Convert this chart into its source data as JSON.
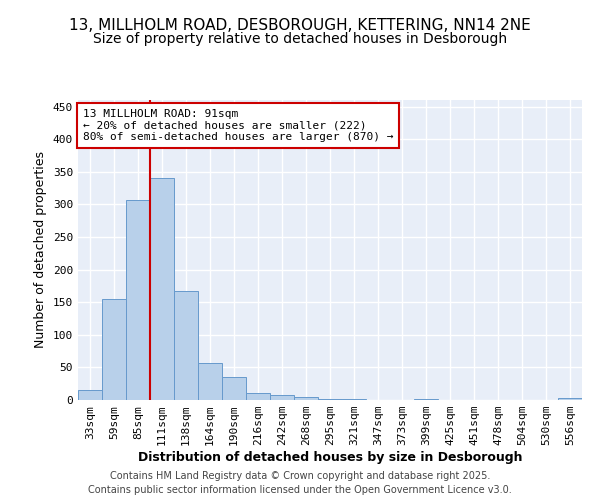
{
  "title_line1": "13, MILLHOLM ROAD, DESBOROUGH, KETTERING, NN14 2NE",
  "title_line2": "Size of property relative to detached houses in Desborough",
  "xlabel": "Distribution of detached houses by size in Desborough",
  "ylabel": "Number of detached properties",
  "categories": [
    "33sqm",
    "59sqm",
    "85sqm",
    "111sqm",
    "138sqm",
    "164sqm",
    "190sqm",
    "216sqm",
    "242sqm",
    "268sqm",
    "295sqm",
    "321sqm",
    "347sqm",
    "373sqm",
    "399sqm",
    "425sqm",
    "451sqm",
    "478sqm",
    "504sqm",
    "530sqm",
    "556sqm"
  ],
  "values": [
    15,
    155,
    307,
    340,
    167,
    56,
    35,
    10,
    8,
    4,
    2,
    1,
    0,
    0,
    2,
    0,
    0,
    0,
    0,
    0,
    3
  ],
  "bar_color": "#b8d0ea",
  "bar_edge_color": "#6699cc",
  "bg_color": "#e8eef8",
  "grid_color": "#ffffff",
  "vline_x": 2.5,
  "vline_color": "#cc0000",
  "annotation_text": "13 MILLHOLM ROAD: 91sqm\n← 20% of detached houses are smaller (222)\n80% of semi-detached houses are larger (870) →",
  "annotation_box_facecolor": "#ffffff",
  "annotation_box_edgecolor": "#cc0000",
  "ylim": [
    0,
    460
  ],
  "yticks": [
    0,
    50,
    100,
    150,
    200,
    250,
    300,
    350,
    400,
    450
  ],
  "footnote_line1": "Contains HM Land Registry data © Crown copyright and database right 2025.",
  "footnote_line2": "Contains public sector information licensed under the Open Government Licence v3.0.",
  "title_fontsize": 11,
  "subtitle_fontsize": 10,
  "axis_label_fontsize": 9,
  "tick_fontsize": 8,
  "annotation_fontsize": 8,
  "footnote_fontsize": 7,
  "ylabel_fontsize": 9
}
